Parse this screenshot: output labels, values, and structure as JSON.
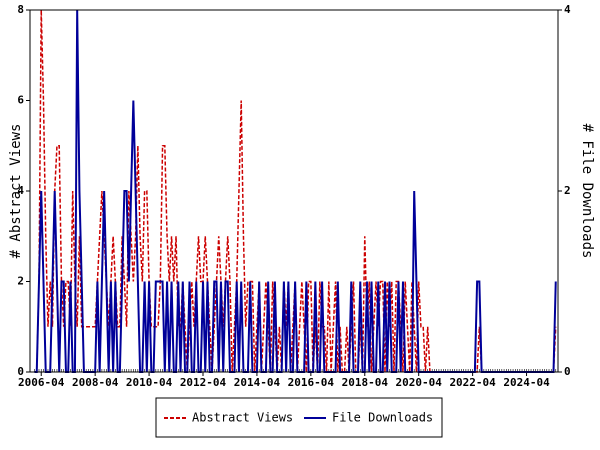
{
  "chart_data": {
    "type": "line",
    "y_label": "# Abstract Views",
    "y2_label": "# File Downloads",
    "x": [
      "2006-01",
      "2006-02",
      "2006-03",
      "2006-04",
      "2006-05",
      "2006-06",
      "2006-07",
      "2006-08",
      "2006-09",
      "2006-10",
      "2006-11",
      "2006-12",
      "2007-01",
      "2007-02",
      "2007-03",
      "2007-04",
      "2007-05",
      "2007-06",
      "2007-07",
      "2007-08",
      "2007-09",
      "2007-10",
      "2007-11",
      "2007-12",
      "2008-01",
      "2008-02",
      "2008-03",
      "2008-04",
      "2008-05",
      "2008-06",
      "2008-07",
      "2008-08",
      "2008-09",
      "2008-10",
      "2008-11",
      "2008-12",
      "2009-01",
      "2009-02",
      "2009-03",
      "2009-04",
      "2009-05",
      "2009-06",
      "2009-07",
      "2009-08",
      "2009-09",
      "2009-10",
      "2009-11",
      "2009-12",
      "2010-01",
      "2010-02",
      "2010-03",
      "2010-04",
      "2010-05",
      "2010-06",
      "2010-07",
      "2010-08",
      "2010-09",
      "2010-10",
      "2010-11",
      "2010-12",
      "2011-01",
      "2011-02",
      "2011-03",
      "2011-04",
      "2011-05",
      "2011-06",
      "2011-07",
      "2011-08",
      "2011-09",
      "2011-10",
      "2011-11",
      "2011-12",
      "2012-01",
      "2012-02",
      "2012-03",
      "2012-04",
      "2012-05",
      "2012-06",
      "2012-07",
      "2012-08",
      "2012-09",
      "2012-10",
      "2012-11",
      "2012-12",
      "2013-01",
      "2013-02",
      "2013-03",
      "2013-04",
      "2013-05",
      "2013-06",
      "2013-07",
      "2013-08",
      "2013-09",
      "2013-10",
      "2013-11",
      "2013-12",
      "2014-01",
      "2014-02",
      "2014-03",
      "2014-04",
      "2014-05",
      "2014-06",
      "2014-07",
      "2014-08",
      "2014-09",
      "2014-10",
      "2014-11",
      "2014-12",
      "2015-01",
      "2015-02",
      "2015-03",
      "2015-04",
      "2015-05",
      "2015-06",
      "2015-07",
      "2015-08",
      "2015-09",
      "2015-10",
      "2015-11",
      "2015-12",
      "2016-01",
      "2016-02",
      "2016-03",
      "2016-04",
      "2016-05",
      "2016-06",
      "2016-07",
      "2016-08",
      "2016-09",
      "2016-10",
      "2016-11",
      "2016-12",
      "2017-01",
      "2017-02",
      "2017-03",
      "2017-04",
      "2017-05",
      "2017-06",
      "2017-07",
      "2017-08",
      "2017-09",
      "2017-10",
      "2017-11",
      "2017-12",
      "2018-01",
      "2018-02",
      "2018-03",
      "2018-04",
      "2018-05",
      "2018-06",
      "2018-07",
      "2018-08",
      "2018-09",
      "2018-10",
      "2018-11",
      "2018-12",
      "2019-01",
      "2019-02",
      "2019-03",
      "2019-04",
      "2019-05",
      "2019-06",
      "2019-07",
      "2019-08",
      "2019-09",
      "2019-10",
      "2019-11",
      "2019-12",
      "2020-01",
      "2020-02",
      "2020-03",
      "2020-04",
      "2020-05",
      "2020-06",
      "2020-07",
      "2020-08",
      "2020-09",
      "2020-10",
      "2020-11",
      "2020-12",
      "2021-01",
      "2021-02",
      "2021-03",
      "2021-04",
      "2021-05",
      "2021-06",
      "2021-07",
      "2021-08",
      "2021-09",
      "2021-10",
      "2021-11",
      "2021-12",
      "2022-01",
      "2022-02",
      "2022-03",
      "2022-04",
      "2022-05",
      "2022-06",
      "2022-07",
      "2022-08",
      "2022-09",
      "2022-10",
      "2022-11",
      "2022-12",
      "2023-01",
      "2023-02",
      "2023-03",
      "2023-04",
      "2023-05",
      "2023-06",
      "2023-07",
      "2023-08",
      "2023-09",
      "2023-10",
      "2023-11",
      "2023-12",
      "2024-01",
      "2024-02",
      "2024-03",
      "2024-04",
      "2024-05",
      "2024-06",
      "2024-07",
      "2024-08",
      "2024-09",
      "2024-10",
      "2024-11",
      "2024-12",
      "2025-01",
      "2025-02",
      "2025-03",
      "2025-04",
      "2025-05"
    ],
    "series": [
      {
        "name": "Abstract Views",
        "color": "#cc0000",
        "line_style": "dashed",
        "values": [
          0,
          0,
          2,
          8,
          6,
          3,
          1,
          2,
          1,
          4,
          5,
          5,
          2,
          1,
          2,
          2,
          1,
          4,
          2,
          1,
          3,
          1,
          1,
          1,
          1,
          1,
          1,
          1,
          2,
          3,
          4,
          3,
          2,
          1,
          2,
          3,
          2,
          1,
          1,
          3,
          2,
          1,
          4,
          3,
          2,
          3,
          5,
          3,
          2,
          4,
          4,
          2,
          1,
          1,
          1,
          1,
          2,
          5,
          5,
          3,
          2,
          3,
          2,
          3,
          1,
          1,
          2,
          1,
          0,
          1,
          2,
          1,
          2,
          3,
          2,
          2,
          3,
          2,
          1,
          0,
          1,
          2,
          3,
          2,
          1,
          2,
          3,
          2,
          0,
          1,
          2,
          4,
          6,
          3,
          1,
          2,
          2,
          2,
          0,
          1,
          2,
          0,
          1,
          2,
          1,
          0,
          2,
          1,
          0,
          1,
          0,
          2,
          1,
          2,
          0,
          1,
          2,
          0,
          1,
          2,
          1,
          0,
          2,
          2,
          0,
          1,
          0,
          2,
          1,
          1,
          0,
          2,
          0,
          1,
          2,
          0,
          1,
          0,
          0,
          1,
          0,
          1,
          2,
          0,
          0,
          1,
          0,
          3,
          1,
          2,
          0,
          1,
          2,
          1,
          2,
          2,
          0,
          2,
          1,
          2,
          0,
          2,
          2,
          1,
          0,
          2,
          1,
          0,
          2,
          1,
          0,
          2,
          1,
          1,
          0,
          1,
          0,
          0,
          0,
          0,
          0,
          0,
          0,
          0,
          0,
          0,
          0,
          0,
          0,
          0,
          0,
          0,
          0,
          0,
          0,
          0,
          0,
          0,
          1,
          0,
          0,
          0,
          0,
          0,
          0,
          0,
          0,
          0,
          0,
          0,
          0,
          0,
          0,
          0,
          0,
          0,
          0,
          0,
          0,
          0,
          0,
          0,
          0,
          0,
          0,
          0,
          0,
          0,
          0,
          0,
          0,
          0,
          1
        ]
      },
      {
        "name": "File Downloads",
        "color": "#000099",
        "line_style": "solid",
        "axis": "y2",
        "values": [
          0,
          0,
          1,
          2,
          1,
          0,
          0,
          0,
          1,
          2,
          1,
          0,
          1,
          1,
          0,
          0,
          1,
          0,
          0,
          4,
          2,
          1,
          0,
          0,
          0,
          0,
          0,
          0,
          1,
          0,
          1,
          2,
          1,
          0,
          1,
          0,
          1,
          0,
          0,
          1,
          2,
          2,
          1,
          2,
          3,
          2,
          1,
          0,
          0,
          1,
          0,
          1,
          0,
          0,
          1,
          1,
          1,
          1,
          0,
          1,
          0,
          1,
          0,
          0,
          1,
          0,
          1,
          0,
          0,
          1,
          0,
          0,
          1,
          0,
          0,
          1,
          0,
          1,
          0,
          0,
          1,
          1,
          0,
          1,
          0,
          1,
          1,
          0,
          0,
          0,
          1,
          0,
          1,
          0,
          0,
          0,
          1,
          0,
          0,
          0,
          1,
          0,
          0,
          0,
          1,
          0,
          0,
          1,
          0,
          0,
          0,
          1,
          0,
          1,
          0,
          0,
          1,
          0,
          0,
          0,
          0,
          1,
          0,
          0,
          0,
          1,
          0,
          0,
          1,
          0,
          0,
          0,
          0,
          0,
          0,
          1,
          0,
          0,
          0,
          0,
          0,
          1,
          0,
          0,
          0,
          1,
          0,
          0,
          1,
          0,
          1,
          0,
          0,
          1,
          0,
          0,
          1,
          0,
          1,
          0,
          0,
          0,
          1,
          0,
          1,
          0,
          0,
          0,
          0,
          2,
          1,
          0,
          0,
          0,
          0,
          0,
          0,
          0,
          0,
          0,
          0,
          0,
          0,
          0,
          0,
          0,
          0,
          0,
          0,
          0,
          0,
          0,
          0,
          0,
          0,
          0,
          0,
          1,
          1,
          0,
          0,
          0,
          0,
          0,
          0,
          0,
          0,
          0,
          0,
          0,
          0,
          0,
          0,
          0,
          0,
          0,
          0,
          0,
          0,
          0,
          0,
          0,
          0,
          0,
          0,
          0,
          0,
          0,
          0,
          0,
          0,
          0,
          1
        ]
      }
    ],
    "xlim": [
      "2005-11",
      "2025-06"
    ],
    "xticks": [
      "2006-04",
      "2008-04",
      "2010-04",
      "2012-04",
      "2014-04",
      "2016-04",
      "2018-04",
      "2020-04",
      "2022-04",
      "2024-04"
    ],
    "ylim": [
      0,
      8
    ],
    "yticks": [
      0,
      2,
      4,
      6,
      8
    ],
    "y2lim": [
      0,
      4
    ],
    "y2ticks": [
      0,
      2,
      4
    ],
    "legend": "bottom"
  }
}
